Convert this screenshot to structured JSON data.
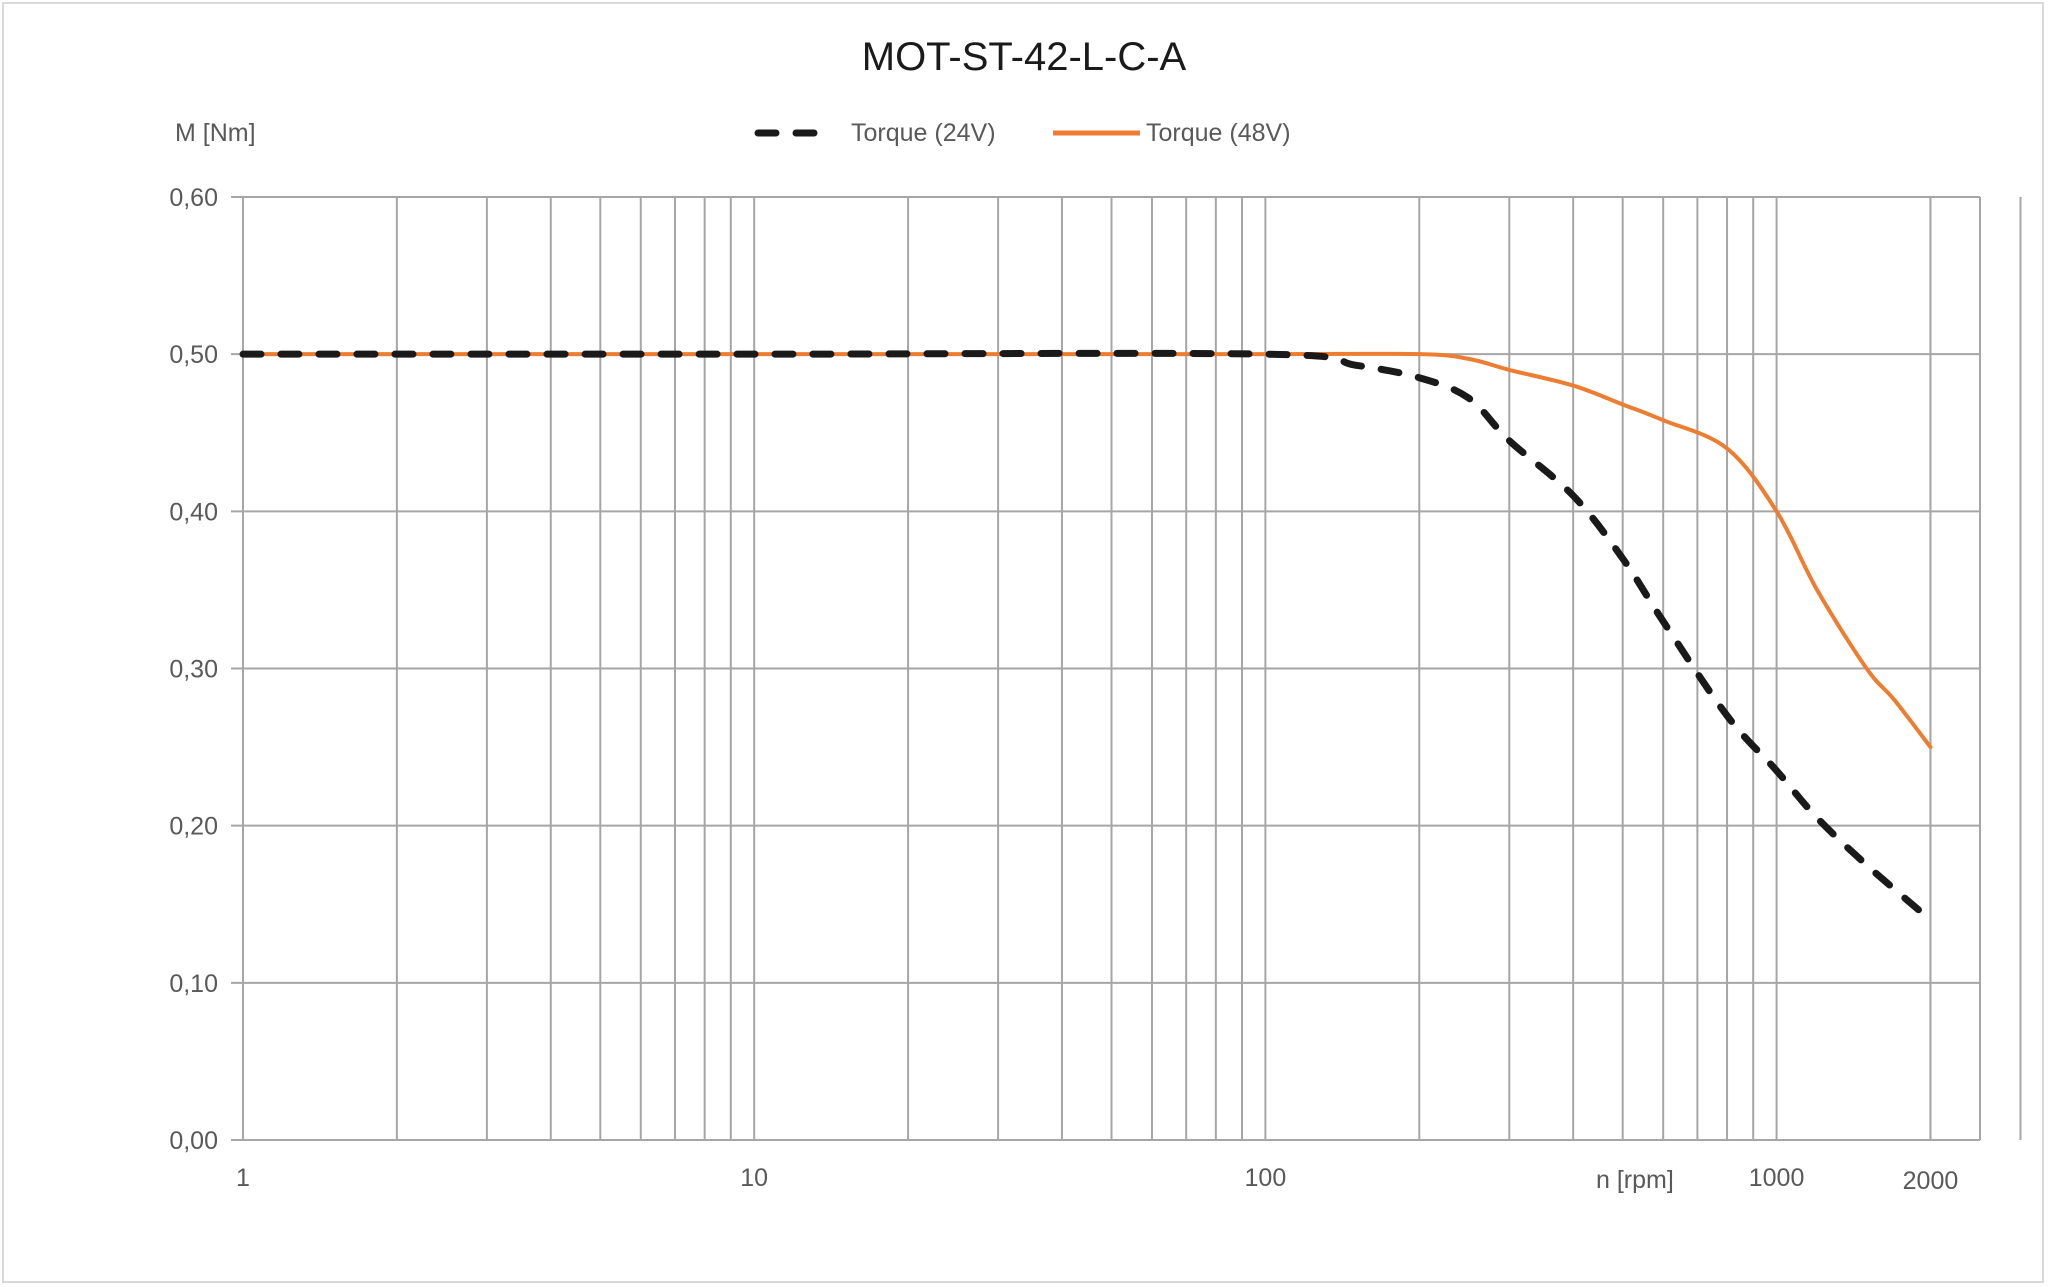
{
  "chart_data": {
    "type": "line",
    "title": "MOT-ST-42-L-C-A",
    "xlabel": "n [rpm]",
    "ylabel": "M [Nm]",
    "xscale": "log",
    "xlim": [
      1,
      2500
    ],
    "ylim": [
      0,
      0.6
    ],
    "grid": true,
    "legend_position": "top",
    "x_tick_labels": [
      "1",
      "10",
      "100",
      "1000",
      "2000"
    ],
    "x_ticks": [
      1,
      10,
      100,
      1000,
      2000
    ],
    "y_ticks": [
      0,
      0.1,
      0.2,
      0.3,
      0.4,
      0.5,
      0.6
    ],
    "y_tick_labels": [
      "0,00",
      "0,10",
      "0,20",
      "0,30",
      "0,40",
      "0,50",
      "0,60"
    ],
    "series": [
      {
        "name": "Torque (24V)",
        "color": "#1a1a1a",
        "style": "dashed",
        "x": [
          1,
          10,
          100,
          150,
          200,
          250,
          300,
          400,
          500,
          600,
          800,
          1000,
          1200,
          1500,
          2000
        ],
        "y": [
          0.5,
          0.5,
          0.5,
          0.493,
          0.485,
          0.472,
          0.445,
          0.41,
          0.37,
          0.33,
          0.27,
          0.235,
          0.205,
          0.175,
          0.14
        ]
      },
      {
        "name": "Torque (48V)",
        "color": "#ed7d31",
        "style": "solid",
        "x": [
          1,
          10,
          100,
          200,
          250,
          300,
          400,
          500,
          600,
          800,
          1000,
          1200,
          1500,
          1700,
          2000
        ],
        "y": [
          0.5,
          0.5,
          0.5,
          0.5,
          0.497,
          0.49,
          0.48,
          0.468,
          0.458,
          0.44,
          0.4,
          0.35,
          0.3,
          0.28,
          0.25
        ]
      }
    ]
  }
}
